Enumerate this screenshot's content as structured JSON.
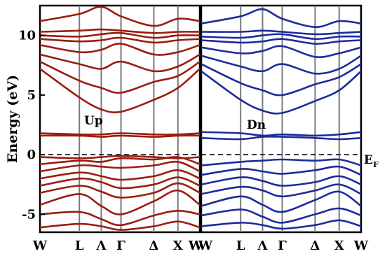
{
  "chart_data": [
    {
      "type": "line",
      "panel": "spin-up",
      "label": "Up",
      "color": "#9b1c10",
      "ylabel": "Energy (eV)",
      "ylim": [
        -6.5,
        12.5
      ],
      "yticks": [
        -5,
        0,
        5,
        10
      ],
      "ytick_labels": [
        "-5",
        "0",
        "5",
        "10"
      ],
      "k_ticks": [
        0,
        1.8,
        2.8,
        3.7,
        5.2,
        6.3,
        7.3
      ],
      "k_labels": [
        "W",
        "L",
        "Λ",
        "Γ",
        "Δ",
        "X",
        "W"
      ],
      "fermi_level": 0,
      "fermi_label": "E",
      "fermi_label_sub": "F",
      "series": [
        {
          "x": [
            0,
            1.8,
            2.8,
            3.7,
            5.2,
            6.3,
            7.3
          ],
          "y": [
            -6.1,
            -5.8,
            -6.0,
            -6.3,
            -6.0,
            -5.6,
            -6.1
          ]
        },
        {
          "x": [
            0,
            1.8,
            2.8,
            3.7,
            5.2,
            6.3,
            7.3
          ],
          "y": [
            -5.0,
            -4.8,
            -5.4,
            -5.9,
            -5.1,
            -4.7,
            -5.0
          ]
        },
        {
          "x": [
            0,
            1.8,
            2.8,
            3.7,
            5.2,
            6.3,
            7.3
          ],
          "y": [
            -4.2,
            -3.3,
            -4.3,
            -5.0,
            -3.9,
            -3.0,
            -4.2
          ]
        },
        {
          "x": [
            0,
            1.8,
            2.8,
            3.7,
            5.2,
            6.3,
            7.3
          ],
          "y": [
            -3.2,
            -2.6,
            -3.1,
            -3.6,
            -3.2,
            -2.4,
            -3.2
          ]
        },
        {
          "x": [
            0,
            1.8,
            2.8,
            3.7,
            5.2,
            6.3,
            7.3
          ],
          "y": [
            -2.6,
            -2.0,
            -2.3,
            -2.8,
            -2.5,
            -1.9,
            -2.6
          ]
        },
        {
          "x": [
            0,
            1.8,
            2.8,
            3.7,
            5.2,
            6.3,
            7.3
          ],
          "y": [
            -2.0,
            -1.5,
            -1.8,
            -2.1,
            -1.8,
            -1.3,
            -2.0
          ]
        },
        {
          "x": [
            0,
            1.8,
            2.8,
            3.7,
            5.2,
            6.3,
            7.3
          ],
          "y": [
            -1.4,
            -0.9,
            -1.0,
            -1.1,
            -0.9,
            -0.6,
            -1.4
          ]
        },
        {
          "x": [
            0,
            1.8,
            2.8,
            3.7,
            5.2,
            6.3,
            7.3
          ],
          "y": [
            -0.8,
            -0.5,
            -0.6,
            -0.3,
            -0.4,
            -0.2,
            -0.8
          ]
        },
        {
          "x": [
            0,
            1.8,
            2.8,
            3.7,
            5.2,
            6.3,
            7.3
          ],
          "y": [
            -0.2,
            -0.3,
            -0.2,
            -0.1,
            -0.2,
            -0.3,
            -0.2
          ]
        },
        {
          "x": [
            0,
            1.8,
            2.8,
            3.7,
            5.2,
            6.3,
            7.3
          ],
          "y": [
            1.6,
            1.6,
            1.5,
            1.6,
            1.5,
            1.6,
            1.6
          ]
        },
        {
          "x": [
            0,
            1.8,
            2.8,
            3.7,
            5.2,
            6.3,
            7.3
          ],
          "y": [
            1.8,
            1.7,
            1.7,
            1.8,
            1.7,
            1.7,
            1.8
          ]
        },
        {
          "x": [
            0,
            1.8,
            2.8,
            3.7,
            5.2,
            6.3,
            7.3
          ],
          "y": [
            7.2,
            4.8,
            3.8,
            3.6,
            4.6,
            5.6,
            7.2
          ]
        },
        {
          "x": [
            0,
            1.8,
            2.8,
            3.7,
            5.2,
            6.3,
            7.3
          ],
          "y": [
            7.8,
            6.2,
            5.6,
            5.2,
            6.1,
            6.6,
            7.8
          ]
        },
        {
          "x": [
            0,
            1.8,
            2.8,
            3.7,
            5.2,
            6.3,
            7.3
          ],
          "y": [
            8.4,
            7.6,
            7.2,
            7.8,
            7.0,
            7.4,
            8.4
          ]
        },
        {
          "x": [
            0,
            1.8,
            2.8,
            3.7,
            5.2,
            6.3,
            7.3
          ],
          "y": [
            9.2,
            8.6,
            8.8,
            9.3,
            8.4,
            8.6,
            9.2
          ]
        },
        {
          "x": [
            0,
            1.8,
            2.8,
            3.7,
            5.2,
            6.3,
            7.3
          ],
          "y": [
            9.7,
            9.5,
            9.6,
            9.8,
            9.4,
            9.6,
            9.7
          ]
        },
        {
          "x": [
            0,
            1.8,
            2.8,
            3.7,
            5.2,
            6.3,
            7.3
          ],
          "y": [
            10.0,
            9.9,
            10.1,
            10.2,
            9.8,
            10.0,
            10.0
          ]
        },
        {
          "x": [
            0,
            1.8,
            2.8,
            3.7,
            5.2,
            6.3,
            7.3
          ],
          "y": [
            10.3,
            10.4,
            10.5,
            10.4,
            10.2,
            10.3,
            10.3
          ]
        },
        {
          "x": [
            0,
            1.8,
            2.8,
            3.7,
            5.2,
            6.3,
            7.3
          ],
          "y": [
            11.2,
            11.8,
            12.4,
            11.6,
            10.8,
            11.4,
            11.2
          ]
        }
      ]
    },
    {
      "type": "line",
      "panel": "spin-down",
      "label": "Dn",
      "color": "#1c2b9b",
      "ylim": [
        -6.5,
        12.5
      ],
      "k_ticks": [
        0,
        1.8,
        2.8,
        3.7,
        5.2,
        6.3,
        7.3
      ],
      "k_labels": [
        "W",
        "L",
        "Λ",
        "Γ",
        "Δ",
        "X",
        "W"
      ],
      "fermi_level": 0,
      "series": [
        {
          "x": [
            0,
            1.8,
            2.8,
            3.7,
            5.2,
            6.3,
            7.3
          ],
          "y": [
            -6.0,
            -5.7,
            -5.9,
            -6.2,
            -5.9,
            -5.5,
            -6.0
          ]
        },
        {
          "x": [
            0,
            1.8,
            2.8,
            3.7,
            5.2,
            6.3,
            7.3
          ],
          "y": [
            -5.1,
            -4.6,
            -5.2,
            -5.7,
            -5.0,
            -4.5,
            -5.1
          ]
        },
        {
          "x": [
            0,
            1.8,
            2.8,
            3.7,
            5.2,
            6.3,
            7.3
          ],
          "y": [
            -4.3,
            -3.5,
            -4.2,
            -4.8,
            -3.8,
            -3.1,
            -4.3
          ]
        },
        {
          "x": [
            0,
            1.8,
            2.8,
            3.7,
            5.2,
            6.3,
            7.3
          ],
          "y": [
            -3.3,
            -2.7,
            -3.0,
            -3.5,
            -3.0,
            -2.5,
            -3.3
          ]
        },
        {
          "x": [
            0,
            1.8,
            2.8,
            3.7,
            5.2,
            6.3,
            7.3
          ],
          "y": [
            -2.5,
            -1.9,
            -2.2,
            -2.6,
            -2.3,
            -1.8,
            -2.5
          ]
        },
        {
          "x": [
            0,
            1.8,
            2.8,
            3.7,
            5.2,
            6.3,
            7.3
          ],
          "y": [
            -1.7,
            -1.2,
            -1.4,
            -1.6,
            -1.3,
            -1.0,
            -1.7
          ]
        },
        {
          "x": [
            0,
            1.8,
            2.8,
            3.7,
            5.2,
            6.3,
            7.3
          ],
          "y": [
            -0.9,
            -0.6,
            -0.5,
            -0.4,
            -0.5,
            -0.4,
            -0.9
          ]
        },
        {
          "x": [
            0,
            1.8,
            2.8,
            3.7,
            5.2,
            6.3,
            7.3
          ],
          "y": [
            1.4,
            1.3,
            1.5,
            1.5,
            1.4,
            1.3,
            1.4
          ]
        },
        {
          "x": [
            0,
            1.8,
            2.8,
            3.7,
            5.2,
            6.3,
            7.3
          ],
          "y": [
            1.9,
            1.8,
            1.6,
            1.7,
            1.6,
            1.7,
            1.9
          ]
        },
        {
          "x": [
            0,
            1.8,
            2.8,
            3.7,
            5.2,
            6.3,
            7.3
          ],
          "y": [
            7.0,
            4.6,
            3.7,
            3.5,
            4.5,
            5.4,
            7.0
          ]
        },
        {
          "x": [
            0,
            1.8,
            2.8,
            3.7,
            5.2,
            6.3,
            7.3
          ],
          "y": [
            7.6,
            6.0,
            5.4,
            5.0,
            5.9,
            6.5,
            7.6
          ]
        },
        {
          "x": [
            0,
            1.8,
            2.8,
            3.7,
            5.2,
            6.3,
            7.3
          ],
          "y": [
            8.3,
            7.4,
            7.0,
            7.6,
            6.8,
            7.2,
            8.3
          ]
        },
        {
          "x": [
            0,
            1.8,
            2.8,
            3.7,
            5.2,
            6.3,
            7.3
          ],
          "y": [
            9.0,
            8.5,
            8.7,
            9.1,
            8.2,
            8.5,
            9.0
          ]
        },
        {
          "x": [
            0,
            1.8,
            2.8,
            3.7,
            5.2,
            6.3,
            7.3
          ],
          "y": [
            9.6,
            9.4,
            9.5,
            9.7,
            9.3,
            9.5,
            9.6
          ]
        },
        {
          "x": [
            0,
            1.8,
            2.8,
            3.7,
            5.2,
            6.3,
            7.3
          ],
          "y": [
            9.9,
            9.8,
            10.0,
            10.1,
            9.7,
            9.9,
            9.9
          ]
        },
        {
          "x": [
            0,
            1.8,
            2.8,
            3.7,
            5.2,
            6.3,
            7.3
          ],
          "y": [
            10.3,
            10.3,
            10.4,
            10.3,
            10.1,
            10.2,
            10.3
          ]
        },
        {
          "x": [
            0,
            1.8,
            2.8,
            3.7,
            5.2,
            6.3,
            7.3
          ],
          "y": [
            11.0,
            11.6,
            12.2,
            11.4,
            10.7,
            11.2,
            11.0
          ]
        }
      ]
    }
  ]
}
